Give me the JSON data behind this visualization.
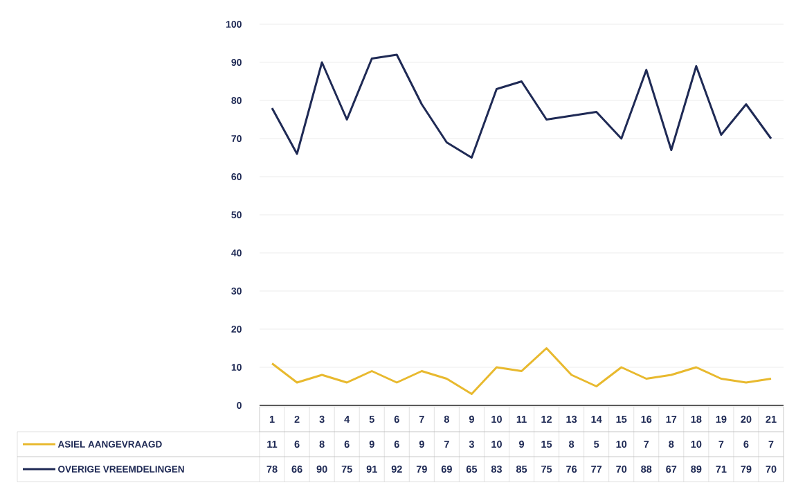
{
  "chart_data": {
    "type": "line",
    "categories": [
      "1",
      "2",
      "3",
      "4",
      "5",
      "6",
      "7",
      "8",
      "9",
      "10",
      "11",
      "12",
      "13",
      "14",
      "15",
      "16",
      "17",
      "18",
      "19",
      "20",
      "21"
    ],
    "series": [
      {
        "name": "ASIEL AANGEVRAAGD",
        "color": "#e8b92e",
        "values": [
          11,
          6,
          8,
          6,
          9,
          6,
          9,
          7,
          3,
          10,
          9,
          15,
          8,
          5,
          10,
          7,
          8,
          10,
          7,
          6,
          7
        ]
      },
      {
        "name": "OVERIGE VREEMDELINGEN",
        "color": "#1f2a55",
        "values": [
          78,
          66,
          90,
          75,
          91,
          92,
          79,
          69,
          65,
          83,
          85,
          75,
          76,
          77,
          70,
          88,
          67,
          89,
          71,
          79,
          70
        ]
      }
    ],
    "ylim": [
      0,
      100
    ],
    "yticks": [
      0,
      10,
      20,
      30,
      40,
      50,
      60,
      70,
      80,
      90,
      100
    ],
    "grid": "y",
    "legend": "bottom",
    "data_labels": true,
    "marker": "none",
    "line_style": "solid"
  }
}
